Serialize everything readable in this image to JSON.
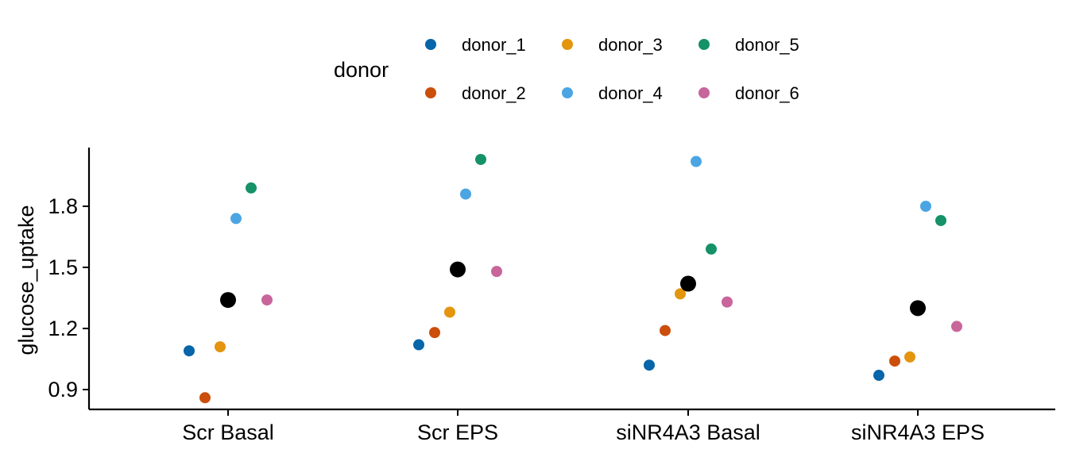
{
  "chart_data": {
    "type": "scatter",
    "xlabel": "",
    "ylabel": "glucose_uptake",
    "categories": [
      "Scr Basal",
      "Scr EPS",
      "siNR4A3 Basal",
      "siNR4A3 EPS"
    ],
    "ylim": [
      0.8,
      2.09
    ],
    "yticks": [
      0.9,
      1.2,
      1.5,
      1.8
    ],
    "ytick_labels": [
      "0.9",
      "1.2",
      "1.5",
      "1.8"
    ],
    "grid": false,
    "legend": {
      "title": "donor",
      "position": "top"
    },
    "series": [
      {
        "name": "donor_1",
        "color": "#0765A9",
        "values": [
          1.09,
          1.12,
          1.02,
          0.97
        ]
      },
      {
        "name": "donor_2",
        "color": "#CB4E0B",
        "values": [
          0.86,
          1.18,
          1.19,
          1.04
        ]
      },
      {
        "name": "donor_3",
        "color": "#E3950E",
        "values": [
          1.11,
          1.28,
          1.37,
          1.06
        ]
      },
      {
        "name": "donor_4",
        "color": "#4BA5E3",
        "values": [
          1.74,
          1.86,
          2.02,
          1.8
        ]
      },
      {
        "name": "donor_5",
        "color": "#159267",
        "values": [
          1.89,
          2.03,
          1.59,
          1.73
        ]
      },
      {
        "name": "donor_6",
        "color": "#C8659B",
        "values": [
          1.34,
          1.48,
          1.33,
          1.21
        ]
      }
    ],
    "mean": {
      "color": "#000000",
      "values": [
        1.34,
        1.49,
        1.42,
        1.3
      ]
    }
  }
}
